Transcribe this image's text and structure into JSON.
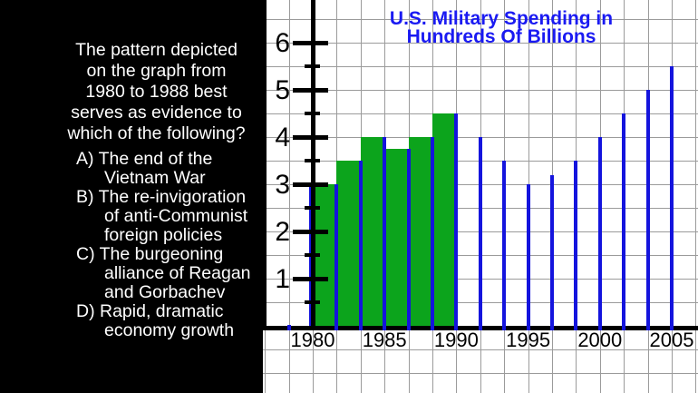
{
  "question_panel": {
    "question": "The pattern depicted on the graph from 1980 to 1988 best serves as evidence to which of the following?",
    "question_lines": [
      "The pattern depicted",
      "on the graph from",
      "1980 to 1988 best",
      "serves as evidence to",
      "which of the following?"
    ],
    "options": [
      {
        "label": "A)",
        "text": "The end of the Vietnam War",
        "lines": [
          "A) The end of the",
          "Vietnam War"
        ]
      },
      {
        "label": "B)",
        "text": "The re-invigoration of anti-Communist foreign policies",
        "lines": [
          "B) The re-invigoration",
          "of anti-Communist",
          "foreign policies"
        ]
      },
      {
        "label": "C)",
        "text": "The burgeoning alliance of Reagan and Gorbachev",
        "lines": [
          "C) The burgeoning",
          "alliance of Reagan",
          "and Gorbachev"
        ]
      },
      {
        "label": "D)",
        "text": "Rapid, dramatic economy growth",
        "lines": [
          "D) Rapid, dramatic",
          "economy growth"
        ]
      }
    ]
  },
  "chart_data": {
    "type": "bar",
    "title": "U.S. Military Spending in Hundreds Of Billions",
    "title_lines": [
      "U.S. Military Spending in",
      "Hundreds Of Billions"
    ],
    "y_tick_labels": [
      "1",
      "2",
      "3",
      "4",
      "5",
      "6"
    ],
    "y_minor_ticks": [
      0.5,
      1.5,
      2.5,
      3.5,
      4.5,
      5.5
    ],
    "ylim": [
      0,
      6.6
    ],
    "x_tick_labels": [
      "1980",
      "1985",
      "1990",
      "1995",
      "2000",
      "2005"
    ],
    "grid_steps_per_x_label": 3,
    "green_bars": {
      "span": "1980-1990 filled bars",
      "values": [
        3.0,
        3.5,
        4.0,
        3.75,
        4.0,
        4.5
      ]
    },
    "blue_spikes": {
      "span": "1980-2005, one thin vertical line per grid step",
      "values": [
        3.0,
        3.0,
        3.5,
        4.0,
        3.75,
        4.0,
        4.5,
        4.0,
        3.5,
        3.0,
        3.2,
        3.5,
        4.0,
        4.5,
        5.0,
        5.5
      ]
    },
    "origin_marker": "small blue dot on x-axis one grid step left of 1980",
    "colors": {
      "bar_green": "#0ca41c",
      "spike_blue": "#1414dd",
      "title_blue": "#1a1af2",
      "grid_gray": "#9b9b9b",
      "axis_black": "#000000",
      "panel_bg": "#000000",
      "panel_text": "#ffffff",
      "chart_bg": "#ffffff",
      "tick_label": "#000000"
    }
  }
}
